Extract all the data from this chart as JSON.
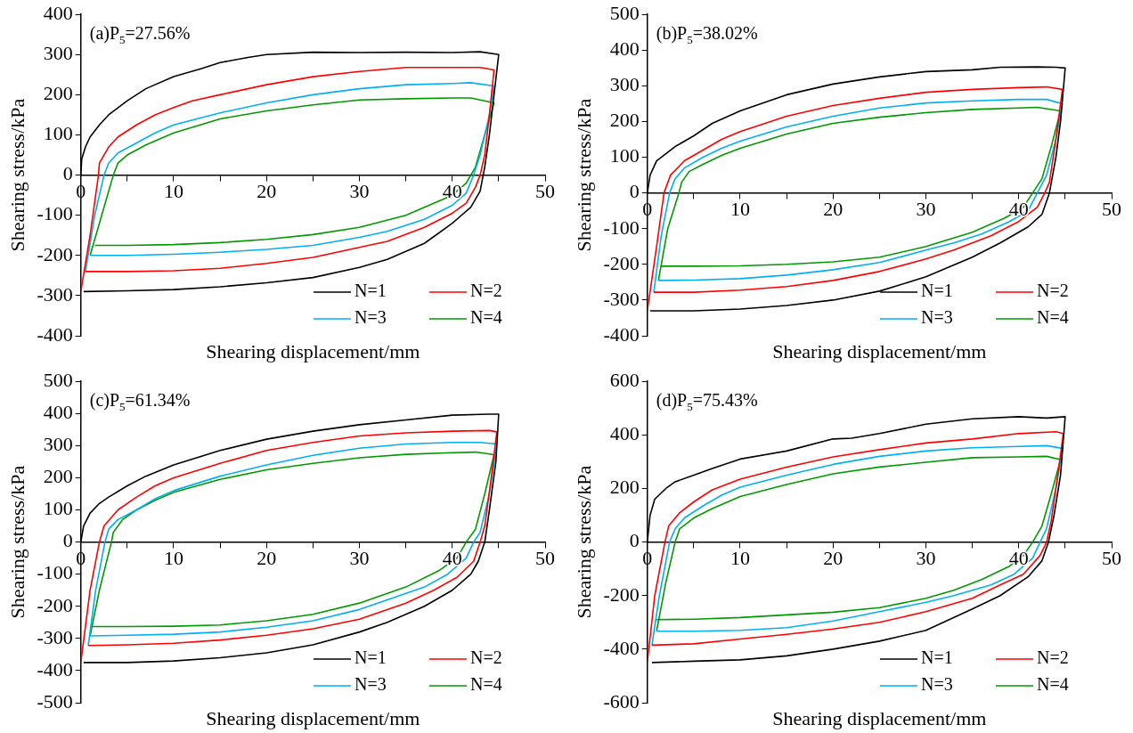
{
  "chart_data": [
    {
      "type": "line",
      "title": "(a)P$_{5}$=27.56%",
      "xlabel": "Shearing displacement/mm",
      "ylabel": "Shearing stress/kPa",
      "xlim": [
        0,
        50
      ],
      "xticks": [
        0,
        {
          "value": 5,
          "label": null
        },
        10,
        {
          "value": 15,
          "label": null
        },
        20,
        {
          "value": 25,
          "label": null
        },
        30,
        {
          "value": 35,
          "label": null
        },
        40,
        {
          "value": 45,
          "label": null
        },
        50
      ],
      "ylim": [
        -400,
        400
      ],
      "yticks": [
        -400,
        -300,
        -200,
        -100,
        0,
        100,
        200,
        300,
        400
      ],
      "legend": "bottom right",
      "series": [
        {
          "name": "N=1",
          "color": "#000000",
          "x": [
            0,
            0.1,
            0.5,
            1,
            2,
            3,
            5,
            7,
            10,
            13,
            15,
            18,
            20,
            25,
            30,
            35,
            40,
            43,
            45,
            44.5,
            44,
            43.5,
            43,
            42,
            40,
            37,
            33,
            30,
            25,
            20,
            15,
            10,
            5,
            0.3
          ],
          "values": [
            0,
            40,
            70,
            95,
            125,
            150,
            185,
            215,
            245,
            265,
            280,
            293,
            300,
            306,
            305,
            306,
            305,
            307,
            300,
            200,
            100,
            20,
            -40,
            -80,
            -120,
            -170,
            -210,
            -230,
            -255,
            -268,
            -278,
            -285,
            -288,
            -290
          ]
        },
        {
          "name": "N=2",
          "color": "#ff0000",
          "x": [
            0,
            1,
            1.9,
            2,
            3,
            4,
            6,
            8,
            10,
            12,
            15,
            20,
            25,
            30,
            35,
            40,
            43,
            44.5,
            44,
            43.5,
            43,
            42.5,
            41.5,
            40,
            37,
            33,
            30,
            25,
            20,
            15,
            10,
            5,
            0.5
          ],
          "values": [
            -290,
            -150,
            0,
            30,
            70,
            95,
            125,
            150,
            168,
            185,
            200,
            225,
            245,
            258,
            268,
            268,
            268,
            262,
            150,
            50,
            0,
            -30,
            -70,
            -95,
            -130,
            -165,
            -180,
            -205,
            -220,
            -232,
            -238,
            -240,
            -240
          ]
        },
        {
          "name": "N=3",
          "color": "#00b0f0",
          "x": [
            0.5,
            1.5,
            2.5,
            3,
            4,
            6,
            8,
            10,
            15,
            20,
            25,
            30,
            35,
            40,
            42,
            44.5,
            44,
            43,
            42.3,
            41.5,
            40,
            37,
            33,
            30,
            25,
            20,
            15,
            10,
            5,
            1
          ],
          "values": [
            -240,
            -100,
            0,
            30,
            55,
            80,
            105,
            125,
            155,
            180,
            200,
            215,
            225,
            228,
            230,
            222,
            150,
            50,
            0,
            -45,
            -75,
            -110,
            -140,
            -155,
            -175,
            -185,
            -192,
            -197,
            -200,
            -200
          ]
        },
        {
          "name": "N=4",
          "color": "#009900",
          "x": [
            1,
            2,
            3.5,
            4,
            5,
            7,
            10,
            15,
            20,
            25,
            30,
            35,
            40,
            42,
            44.5,
            43.5,
            42.5,
            41.5,
            40,
            38,
            35,
            30,
            25,
            20,
            15,
            10,
            5,
            1.5
          ],
          "values": [
            -200,
            -120,
            0,
            30,
            50,
            75,
            105,
            140,
            160,
            175,
            187,
            190,
            192,
            192,
            180,
            100,
            20,
            -20,
            -50,
            -70,
            -100,
            -130,
            -148,
            -160,
            -168,
            -173,
            -175,
            -175
          ]
        }
      ]
    },
    {
      "type": "line",
      "title": "(b)P$_{5}$=38.02%",
      "xlabel": "Shearing displacement/mm",
      "ylabel": "Shearing stress/kPa",
      "xlim": [
        0,
        50
      ],
      "xticks": [
        0,
        {
          "value": 5,
          "label": null
        },
        10,
        {
          "value": 15,
          "label": null
        },
        20,
        {
          "value": 25,
          "label": null
        },
        30,
        {
          "value": 35,
          "label": null
        },
        40,
        {
          "value": 45,
          "label": null
        },
        50
      ],
      "ylim": [
        -400,
        500
      ],
      "yticks": [
        -400,
        -300,
        -200,
        -100,
        0,
        100,
        200,
        300,
        400,
        500
      ],
      "legend": "bottom right",
      "series": [
        {
          "name": "N=1",
          "color": "#000000",
          "x": [
            0,
            0.3,
            1,
            2,
            3,
            5,
            7,
            10,
            15,
            20,
            25,
            30,
            35,
            38,
            42,
            44,
            45,
            44.5,
            44,
            43.3,
            42.5,
            41,
            38,
            35,
            30,
            25,
            20,
            15,
            10,
            5,
            0.3
          ],
          "values": [
            0,
            50,
            90,
            110,
            130,
            160,
            195,
            230,
            275,
            305,
            325,
            340,
            345,
            352,
            353,
            352,
            350,
            200,
            100,
            0,
            -60,
            -95,
            -140,
            -180,
            -235,
            -275,
            -300,
            -315,
            -325,
            -330,
            -330
          ]
        },
        {
          "name": "N=2",
          "color": "#ff0000",
          "x": [
            0,
            1,
            1.8,
            2.5,
            4,
            6,
            8,
            10,
            15,
            20,
            25,
            30,
            35,
            40,
            43,
            44.7,
            44,
            43.3,
            42.8,
            42,
            40,
            37,
            33,
            30,
            25,
            20,
            15,
            10,
            5,
            0.7
          ],
          "values": [
            -330,
            -150,
            0,
            50,
            90,
            120,
            150,
            172,
            215,
            245,
            265,
            282,
            290,
            295,
            297,
            290,
            150,
            30,
            0,
            -40,
            -80,
            -120,
            -160,
            -185,
            -220,
            -245,
            -262,
            -272,
            -278,
            -278
          ]
        },
        {
          "name": "N=3",
          "color": "#00b0f0",
          "x": [
            0.7,
            1.5,
            2.4,
            3,
            4,
            6,
            8,
            10,
            15,
            20,
            25,
            30,
            35,
            40,
            43,
            44.7,
            44,
            43,
            42,
            41,
            39,
            36,
            33,
            30,
            25,
            20,
            15,
            10,
            5,
            1.2
          ],
          "values": [
            -278,
            -120,
            0,
            40,
            70,
            100,
            125,
            145,
            185,
            215,
            238,
            252,
            258,
            262,
            262,
            250,
            150,
            50,
            0,
            -50,
            -80,
            -115,
            -140,
            -160,
            -195,
            -215,
            -230,
            -240,
            -244,
            -245
          ]
        },
        {
          "name": "N=4",
          "color": "#009900",
          "x": [
            1.2,
            2.2,
            3.4,
            3.7,
            4.5,
            6,
            8,
            10,
            15,
            20,
            25,
            30,
            35,
            40,
            42,
            44.5,
            43.5,
            42.5,
            41.5,
            40.5,
            38.5,
            35,
            30,
            25,
            20,
            15,
            10,
            5,
            1.5
          ],
          "values": [
            -245,
            -100,
            0,
            30,
            60,
            80,
            105,
            125,
            165,
            195,
            212,
            225,
            234,
            238,
            240,
            230,
            130,
            40,
            0,
            -40,
            -70,
            -110,
            -150,
            -180,
            -193,
            -200,
            -204,
            -205,
            -205
          ]
        }
      ]
    },
    {
      "type": "line",
      "title": "(c)P$_{5}$=61.34%",
      "xlabel": "Shearing displacement/mm",
      "ylabel": "Shearing stress/kPa",
      "xlim": [
        0,
        50
      ],
      "xticks": [
        0,
        {
          "value": 5,
          "label": null
        },
        10,
        {
          "value": 15,
          "label": null
        },
        20,
        {
          "value": 25,
          "label": null
        },
        30,
        {
          "value": 35,
          "label": null
        },
        40,
        {
          "value": 45,
          "label": null
        },
        50
      ],
      "ylim": [
        -500,
        500
      ],
      "yticks": [
        -500,
        -400,
        -300,
        -200,
        -100,
        0,
        100,
        200,
        300,
        400,
        500
      ],
      "legend": "bottom right",
      "series": [
        {
          "name": "N=1",
          "color": "#000000",
          "x": [
            0,
            0.3,
            1,
            2,
            3,
            5,
            7,
            10,
            15,
            20,
            25,
            30,
            35,
            40,
            44,
            45,
            44.7,
            44,
            43.5,
            42.8,
            42,
            40,
            37,
            33,
            30,
            25,
            20,
            15,
            10,
            5,
            0.3
          ],
          "values": [
            0,
            50,
            90,
            120,
            140,
            175,
            205,
            240,
            285,
            320,
            345,
            365,
            380,
            395,
            398,
            398,
            250,
            100,
            0,
            -60,
            -100,
            -150,
            -200,
            -250,
            -280,
            -320,
            -345,
            -360,
            -370,
            -375,
            -375
          ]
        },
        {
          "name": "N=2",
          "color": "#ff0000",
          "x": [
            0,
            1,
            2,
            2.5,
            4,
            6,
            8,
            10,
            15,
            20,
            25,
            30,
            35,
            40,
            44,
            44.8,
            44.2,
            43.5,
            43,
            42.3,
            40.5,
            38,
            35,
            30,
            25,
            20,
            15,
            10,
            5,
            0.8
          ],
          "values": [
            -375,
            -150,
            0,
            50,
            100,
            140,
            175,
            200,
            245,
            285,
            310,
            330,
            340,
            345,
            347,
            343,
            200,
            50,
            0,
            -60,
            -110,
            -150,
            -190,
            -240,
            -270,
            -290,
            -305,
            -315,
            -320,
            -322
          ]
        },
        {
          "name": "N=3",
          "color": "#00b0f0",
          "x": [
            0.8,
            1.6,
            2.6,
            3,
            4,
            6,
            8,
            10,
            15,
            20,
            25,
            30,
            35,
            40,
            43,
            44.8,
            44,
            43,
            42.3,
            41.5,
            39.5,
            37,
            33,
            30,
            25,
            20,
            15,
            10,
            5,
            1
          ],
          "values": [
            -322,
            -150,
            0,
            40,
            70,
            100,
            135,
            160,
            205,
            240,
            270,
            292,
            305,
            310,
            310,
            305,
            150,
            30,
            0,
            -50,
            -100,
            -140,
            -180,
            -210,
            -245,
            -265,
            -280,
            -287,
            -290,
            -292
          ]
        },
        {
          "name": "N=4",
          "color": "#009900",
          "x": [
            1,
            2,
            3.3,
            3.5,
            4.5,
            6,
            8,
            10,
            15,
            20,
            25,
            30,
            35,
            40,
            42.5,
            44.5,
            43.5,
            42.5,
            41.5,
            40.5,
            38.5,
            35,
            30,
            25,
            20,
            15,
            10,
            5,
            1
          ],
          "values": [
            -292,
            -150,
            0,
            30,
            70,
            100,
            130,
            155,
            195,
            225,
            245,
            262,
            273,
            278,
            280,
            272,
            150,
            40,
            0,
            -50,
            -90,
            -140,
            -190,
            -225,
            -245,
            -258,
            -262,
            -263,
            -263
          ]
        }
      ]
    },
    {
      "type": "line",
      "title": "(d)P$_{5}$=75.43%",
      "xlabel": "Shearing displacement/mm",
      "ylabel": "Shearing stress/kPa",
      "xlim": [
        0,
        50
      ],
      "xticks": [
        0,
        {
          "value": 5,
          "label": null
        },
        10,
        {
          "value": 15,
          "label": null
        },
        20,
        {
          "value": 25,
          "label": null
        },
        30,
        {
          "value": 35,
          "label": null
        },
        40,
        {
          "value": 45,
          "label": null
        },
        50
      ],
      "ylim": [
        -600,
        600
      ],
      "yticks": [
        -600,
        -400,
        -200,
        0,
        200,
        400,
        600
      ],
      "legend": "bottom right",
      "series": [
        {
          "name": "N=1",
          "color": "#000000",
          "x": [
            0,
            0.3,
            0.8,
            2,
            3,
            5,
            7,
            10,
            15,
            20,
            22,
            25,
            30,
            35,
            40,
            43,
            45,
            44.5,
            43.8,
            43.2,
            42.5,
            41,
            38,
            35,
            30,
            25,
            20,
            15,
            10,
            5,
            0.5
          ],
          "values": [
            0,
            100,
            160,
            200,
            225,
            250,
            275,
            310,
            340,
            385,
            388,
            405,
            440,
            460,
            468,
            463,
            468,
            250,
            100,
            0,
            -70,
            -130,
            -200,
            -250,
            -330,
            -370,
            -400,
            -425,
            -440,
            -445,
            -450
          ]
        },
        {
          "name": "N=2",
          "color": "#ff0000",
          "x": [
            0,
            0.8,
            1.9,
            2.3,
            3.5,
            5,
            7,
            10,
            15,
            20,
            25,
            30,
            35,
            40,
            44,
            44.8,
            44.2,
            43.5,
            43,
            42.3,
            40.5,
            38,
            35,
            30,
            25,
            20,
            15,
            10,
            5,
            0.5
          ],
          "values": [
            -450,
            -200,
            0,
            60,
            110,
            150,
            195,
            235,
            280,
            318,
            345,
            370,
            385,
            405,
            412,
            405,
            250,
            80,
            0,
            -50,
            -120,
            -160,
            -210,
            -260,
            -300,
            -325,
            -345,
            -362,
            -380,
            -385
          ]
        },
        {
          "name": "N=3",
          "color": "#00b0f0",
          "x": [
            0.5,
            1.3,
            2.4,
            3,
            4,
            6,
            8,
            10,
            15,
            20,
            25,
            30,
            35,
            40,
            43,
            44.7,
            44,
            43,
            42.3,
            41.5,
            39.5,
            37,
            33,
            30,
            25,
            20,
            15,
            10,
            5,
            1
          ],
          "values": [
            -385,
            -200,
            0,
            50,
            90,
            135,
            175,
            205,
            250,
            290,
            320,
            340,
            352,
            357,
            360,
            350,
            200,
            50,
            0,
            -60,
            -120,
            -160,
            -200,
            -225,
            -260,
            -295,
            -320,
            -330,
            -333,
            -333
          ]
        },
        {
          "name": "N=4",
          "color": "#009900",
          "x": [
            1,
            2,
            3,
            3.5,
            5,
            7,
            10,
            15,
            20,
            25,
            30,
            35,
            40,
            43,
            44.5,
            43.5,
            42.5,
            41.5,
            40.5,
            39,
            36,
            33,
            30,
            25,
            20,
            15,
            10,
            5,
            1
          ],
          "values": [
            -333,
            -150,
            0,
            50,
            90,
            125,
            170,
            215,
            255,
            280,
            298,
            315,
            318,
            320,
            308,
            180,
            60,
            0,
            -50,
            -90,
            -140,
            -180,
            -210,
            -245,
            -262,
            -272,
            -282,
            -288,
            -290
          ]
        }
      ]
    }
  ]
}
